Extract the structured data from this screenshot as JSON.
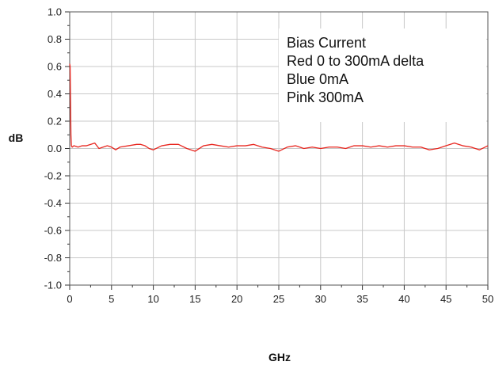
{
  "chart_data": {
    "type": "line",
    "xlabel": "GHz",
    "ylabel": "dB",
    "xlim": [
      0,
      50
    ],
    "ylim": [
      -1.0,
      1.0
    ],
    "x_ticks": [
      0,
      5,
      10,
      15,
      20,
      25,
      30,
      35,
      40,
      45,
      50
    ],
    "y_ticks": [
      1.0,
      0.8,
      0.6,
      0.4,
      0.2,
      0.0,
      -0.2,
      -0.4,
      -0.6,
      -0.8,
      -1.0
    ],
    "x_tick_labels": [
      "0",
      "5",
      "10",
      "15",
      "20",
      "25",
      "30",
      "35",
      "40",
      "45",
      "50"
    ],
    "y_tick_labels": [
      "1.0",
      "0.8",
      "0.6",
      "0.4",
      "0.2",
      "0.0",
      "-0.2",
      "-0.4",
      "-0.6",
      "-0.8",
      "-1.0"
    ],
    "grid": true,
    "legend_placement": "top-right",
    "annotation_lines": [
      "Bias Current",
      "Red 0 to 300mA delta",
      "Blue 0mA",
      "Pink 300mA"
    ],
    "series": [
      {
        "color": "#e8261f",
        "x": [
          0,
          0.05,
          0.1,
          0.15,
          0.2,
          0.3,
          0.5,
          1,
          1.5,
          2,
          2.5,
          3,
          3.5,
          4,
          4.5,
          5,
          5.5,
          6,
          7,
          8,
          8.5,
          9,
          9.5,
          10,
          11,
          12,
          13,
          14,
          15,
          16,
          17,
          18,
          19,
          20,
          21,
          22,
          23,
          24,
          25,
          26,
          27,
          28,
          29,
          30,
          31,
          32,
          33,
          34,
          35,
          36,
          37,
          38,
          39,
          40,
          41,
          42,
          43,
          44,
          45,
          46,
          47,
          48,
          49,
          50
        ],
        "y": [
          0.62,
          0.6,
          0.35,
          0.1,
          0.02,
          0.01,
          0.02,
          0.01,
          0.02,
          0.02,
          0.03,
          0.04,
          0.0,
          0.01,
          0.02,
          0.01,
          -0.01,
          0.01,
          0.02,
          0.03,
          0.03,
          0.02,
          0.0,
          -0.01,
          0.02,
          0.03,
          0.03,
          0.0,
          -0.02,
          0.02,
          0.03,
          0.02,
          0.01,
          0.02,
          0.02,
          0.03,
          0.01,
          0.0,
          -0.02,
          0.01,
          0.02,
          0.0,
          0.01,
          0.0,
          0.01,
          0.01,
          0.0,
          0.02,
          0.02,
          0.01,
          0.02,
          0.01,
          0.02,
          0.02,
          0.01,
          0.01,
          -0.01,
          0.0,
          0.02,
          0.04,
          0.02,
          0.01,
          -0.01,
          0.02
        ]
      }
    ]
  }
}
